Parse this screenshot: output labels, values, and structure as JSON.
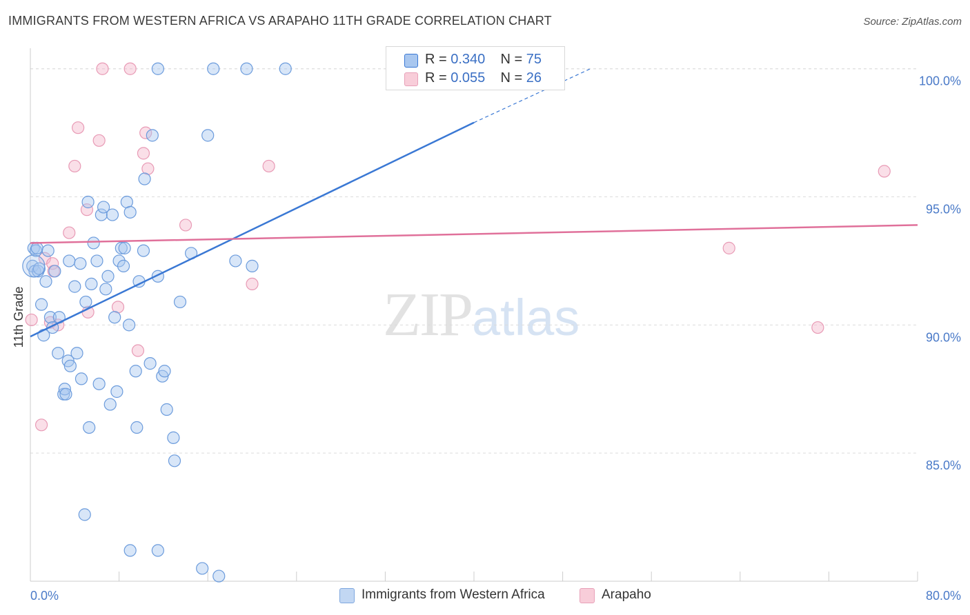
{
  "title": "IMMIGRANTS FROM WESTERN AFRICA VS ARAPAHO 11TH GRADE CORRELATION CHART",
  "source": "Source: ZipAtlas.com",
  "watermark": {
    "zip": "ZIP",
    "atlas": "atlas"
  },
  "legend": [
    {
      "r_label": "R = ",
      "r_value": "0.340",
      "n_label": "N = ",
      "n_value": "75"
    },
    {
      "r_label": "R = ",
      "r_value": "0.055",
      "n_label": "N = ",
      "n_value": "26"
    }
  ],
  "bottom_legend": [
    "Immigrants from Western Africa",
    "Arapaho"
  ],
  "chart_data": {
    "type": "scatter",
    "title": "IMMIGRANTS FROM WESTERN AFRICA VS ARAPAHO 11TH GRADE CORRELATION CHART",
    "xlabel": "",
    "ylabel": "11th Grade",
    "xlim": [
      0,
      80
    ],
    "ylim": [
      80,
      100.8
    ],
    "x_tick_labels": [
      "0.0%",
      "80.0%"
    ],
    "y_ticks": [
      85,
      90,
      95,
      100
    ],
    "y_tick_labels": [
      "85.0%",
      "90.0%",
      "95.0%",
      "100.0%"
    ],
    "colors": {
      "blue": "#3a78d4",
      "blue_fill": "#a9c7ef",
      "pink": "#e0709a",
      "pink_fill": "#f4b8cc"
    },
    "series": [
      {
        "name": "Immigrants from Western Africa",
        "color": "blue",
        "trend": {
          "x0": 0,
          "y0": 89.55,
          "x1": 40,
          "y1": 97.9,
          "dash_to_x": 50.5,
          "dash_to_y": 100.0
        },
        "points": [
          [
            0.2,
            92.3
          ],
          [
            0.3,
            93.0
          ],
          [
            0.4,
            92.1
          ],
          [
            0.5,
            92.9
          ],
          [
            0.6,
            93.0
          ],
          [
            0.7,
            92.1
          ],
          [
            0.8,
            92.2
          ],
          [
            1.0,
            90.8
          ],
          [
            1.2,
            89.6
          ],
          [
            1.4,
            91.7
          ],
          [
            1.6,
            92.9
          ],
          [
            1.8,
            90.3
          ],
          [
            2.0,
            89.9
          ],
          [
            2.2,
            92.1
          ],
          [
            2.5,
            88.9
          ],
          [
            2.6,
            90.3
          ],
          [
            3.0,
            87.3
          ],
          [
            3.1,
            87.5
          ],
          [
            3.2,
            87.3
          ],
          [
            3.4,
            88.6
          ],
          [
            3.5,
            92.5
          ],
          [
            3.6,
            88.4
          ],
          [
            4.0,
            91.5
          ],
          [
            4.2,
            88.9
          ],
          [
            4.5,
            92.4
          ],
          [
            4.6,
            87.9
          ],
          [
            4.9,
            82.6
          ],
          [
            5.0,
            90.9
          ],
          [
            5.2,
            94.8
          ],
          [
            5.3,
            86.0
          ],
          [
            5.5,
            91.6
          ],
          [
            5.7,
            93.2
          ],
          [
            6.0,
            92.5
          ],
          [
            6.2,
            87.7
          ],
          [
            6.4,
            94.3
          ],
          [
            6.6,
            94.6
          ],
          [
            6.8,
            91.4
          ],
          [
            7.0,
            91.9
          ],
          [
            7.2,
            86.9
          ],
          [
            7.4,
            94.3
          ],
          [
            7.6,
            90.3
          ],
          [
            7.8,
            87.4
          ],
          [
            8.0,
            92.5
          ],
          [
            8.2,
            93.0
          ],
          [
            8.4,
            92.3
          ],
          [
            8.5,
            93.0
          ],
          [
            8.7,
            94.8
          ],
          [
            8.9,
            90.0
          ],
          [
            9.0,
            94.4
          ],
          [
            9.5,
            88.2
          ],
          [
            9.6,
            86.0
          ],
          [
            9.8,
            91.7
          ],
          [
            10.2,
            92.9
          ],
          [
            10.3,
            95.7
          ],
          [
            10.8,
            88.5
          ],
          [
            11.0,
            97.4
          ],
          [
            11.5,
            91.9
          ],
          [
            11.9,
            88.0
          ],
          [
            12.1,
            88.2
          ],
          [
            12.3,
            86.7
          ],
          [
            12.9,
            85.6
          ],
          [
            13.0,
            84.7
          ],
          [
            13.5,
            90.9
          ],
          [
            14.5,
            92.8
          ],
          [
            15.5,
            80.5
          ],
          [
            16.0,
            97.4
          ],
          [
            16.5,
            100.0
          ],
          [
            17.0,
            80.2
          ],
          [
            18.5,
            92.5
          ],
          [
            19.5,
            100.0
          ],
          [
            20.0,
            92.3
          ],
          [
            23.0,
            100.0
          ],
          [
            11.5,
            81.2
          ],
          [
            9.0,
            81.2
          ],
          [
            11.5,
            100.0
          ]
        ]
      },
      {
        "name": "Arapaho",
        "color": "pink",
        "trend": {
          "x0": 0,
          "y0": 93.2,
          "x1": 80,
          "y1": 93.9
        },
        "points": [
          [
            0.1,
            90.2
          ],
          [
            1.0,
            86.1
          ],
          [
            1.3,
            92.6
          ],
          [
            1.8,
            90.1
          ],
          [
            2.0,
            92.4
          ],
          [
            2.1,
            92.1
          ],
          [
            2.5,
            90.0
          ],
          [
            3.5,
            93.6
          ],
          [
            4.0,
            96.2
          ],
          [
            4.3,
            97.7
          ],
          [
            5.1,
            94.5
          ],
          [
            5.2,
            90.5
          ],
          [
            6.2,
            97.2
          ],
          [
            7.9,
            90.7
          ],
          [
            9.0,
            100.0
          ],
          [
            9.7,
            89.0
          ],
          [
            10.2,
            96.7
          ],
          [
            10.4,
            97.5
          ],
          [
            10.6,
            96.1
          ],
          [
            14.0,
            93.9
          ],
          [
            20.0,
            91.6
          ],
          [
            21.5,
            96.2
          ],
          [
            63.0,
            93.0
          ],
          [
            71.0,
            89.9
          ],
          [
            77.0,
            96.0
          ],
          [
            6.5,
            100.0
          ]
        ]
      }
    ]
  }
}
